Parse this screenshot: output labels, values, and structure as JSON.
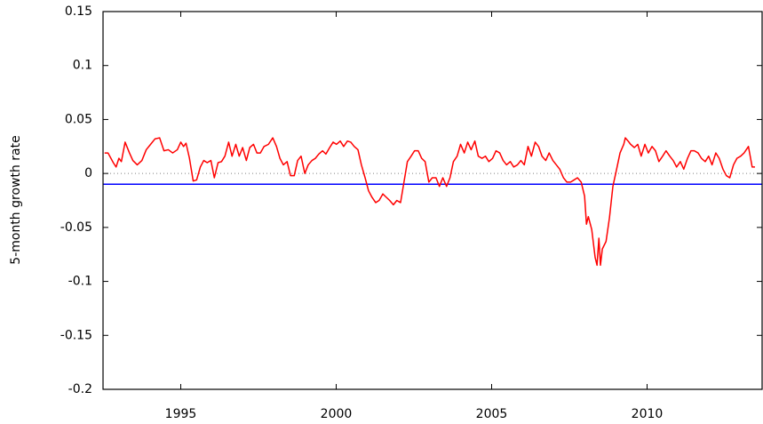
{
  "chart_data": {
    "type": "line",
    "y_label": "5-month growth rate",
    "xlim": [
      1992.5,
      2013.7
    ],
    "xticks": [
      1995,
      2000,
      2005,
      2010
    ],
    "ylim": [
      -0.2,
      0.15
    ],
    "yticks": [
      0.15,
      0.1,
      0.05,
      0,
      -0.05,
      -0.1,
      -0.15,
      -0.2
    ],
    "hlines": [
      {
        "value": 0,
        "color": "#808080",
        "dash": "dotted"
      },
      {
        "value": -0.01,
        "color": "#0000ff"
      }
    ],
    "x": [
      1992.55,
      1992.66,
      1992.83,
      1992.92,
      1993.01,
      1993.09,
      1993.21,
      1993.35,
      1993.46,
      1993.6,
      1993.75,
      1993.89,
      1994.03,
      1994.17,
      1994.32,
      1994.46,
      1994.6,
      1994.74,
      1994.89,
      1995.0,
      1995.09,
      1995.17,
      1995.28,
      1995.4,
      1995.51,
      1995.63,
      1995.74,
      1995.85,
      1995.97,
      1996.08,
      1996.2,
      1996.31,
      1996.42,
      1996.54,
      1996.65,
      1996.77,
      1996.88,
      1996.99,
      1997.11,
      1997.22,
      1997.34,
      1997.45,
      1997.56,
      1997.68,
      1997.82,
      1997.96,
      1998.08,
      1998.19,
      1998.3,
      1998.42,
      1998.53,
      1998.65,
      1998.76,
      1998.87,
      1998.99,
      1999.1,
      1999.22,
      1999.33,
      1999.44,
      1999.56,
      1999.67,
      1999.79,
      1999.9,
      2000.01,
      2000.13,
      2000.24,
      2000.36,
      2000.47,
      2000.58,
      2000.7,
      2000.81,
      2000.93,
      2001.04,
      2001.15,
      2001.27,
      2001.38,
      2001.5,
      2001.61,
      2001.72,
      2001.84,
      2001.95,
      2002.07,
      2002.18,
      2002.29,
      2002.41,
      2002.52,
      2002.64,
      2002.75,
      2002.86,
      2002.98,
      2003.09,
      2003.21,
      2003.32,
      2003.43,
      2003.55,
      2003.66,
      2003.77,
      2003.89,
      2004.0,
      2004.12,
      2004.23,
      2004.34,
      2004.46,
      2004.57,
      2004.69,
      2004.8,
      2004.91,
      2005.03,
      2005.14,
      2005.26,
      2005.37,
      2005.48,
      2005.6,
      2005.71,
      2005.83,
      2005.94,
      2006.05,
      2006.17,
      2006.28,
      2006.4,
      2006.51,
      2006.62,
      2006.74,
      2006.85,
      2006.97,
      2007.08,
      2007.19,
      2007.31,
      2007.42,
      2007.54,
      2007.65,
      2007.76,
      2007.88,
      2007.99,
      2008.05,
      2008.11,
      2008.22,
      2008.33,
      2008.39,
      2008.45,
      2008.5,
      2008.56,
      2008.68,
      2008.79,
      2008.9,
      2009.02,
      2009.13,
      2009.25,
      2009.3,
      2009.39,
      2009.47,
      2009.59,
      2009.7,
      2009.81,
      2009.93,
      2010.04,
      2010.16,
      2010.27,
      2010.38,
      2010.5,
      2010.61,
      2010.73,
      2010.84,
      2010.95,
      2011.07,
      2011.18,
      2011.3,
      2011.41,
      2011.52,
      2011.64,
      2011.75,
      2011.87,
      2011.98,
      2012.09,
      2012.21,
      2012.32,
      2012.44,
      2012.55,
      2012.66,
      2012.78,
      2012.89,
      2013.01,
      2013.12,
      2013.26,
      2013.38,
      2013.47
    ],
    "series": [
      {
        "color": "#ff0000",
        "values": [
          0.019,
          0.019,
          0.01,
          0.006,
          0.014,
          0.011,
          0.029,
          0.019,
          0.012,
          0.008,
          0.012,
          0.022,
          0.027,
          0.032,
          0.033,
          0.021,
          0.022,
          0.019,
          0.022,
          0.029,
          0.025,
          0.028,
          0.014,
          -0.007,
          -0.006,
          0.006,
          0.012,
          0.01,
          0.012,
          -0.004,
          0.01,
          0.011,
          0.016,
          0.029,
          0.016,
          0.027,
          0.016,
          0.024,
          0.012,
          0.024,
          0.027,
          0.019,
          0.019,
          0.025,
          0.027,
          0.033,
          0.025,
          0.014,
          0.008,
          0.011,
          -0.002,
          -0.002,
          0.012,
          0.016,
          0,
          0.008,
          0.012,
          0.014,
          0.018,
          0.021,
          0.018,
          0.024,
          0.029,
          0.027,
          0.03,
          0.025,
          0.03,
          0.029,
          0.025,
          0.022,
          0.008,
          -0.004,
          -0.016,
          -0.022,
          -0.027,
          -0.025,
          -0.019,
          -0.022,
          -0.025,
          -0.029,
          -0.025,
          -0.027,
          -0.008,
          0.011,
          0.016,
          0.021,
          0.021,
          0.014,
          0.011,
          -0.008,
          -0.004,
          -0.004,
          -0.012,
          -0.004,
          -0.012,
          -0.004,
          0.011,
          0.016,
          0.027,
          0.019,
          0.029,
          0.022,
          0.03,
          0.016,
          0.014,
          0.016,
          0.011,
          0.014,
          0.021,
          0.019,
          0.012,
          0.008,
          0.011,
          0.006,
          0.008,
          0.012,
          0.008,
          0.025,
          0.016,
          0.029,
          0.025,
          0.016,
          0.012,
          0.019,
          0.012,
          0.008,
          0.004,
          -0.004,
          -0.008,
          -0.008,
          -0.006,
          -0.004,
          -0.008,
          -0.021,
          -0.047,
          -0.04,
          -0.052,
          -0.078,
          -0.085,
          -0.06,
          -0.085,
          -0.07,
          -0.063,
          -0.041,
          -0.012,
          0.004,
          0.019,
          0.027,
          0.033,
          0.03,
          0.027,
          0.024,
          0.027,
          0.016,
          0.027,
          0.019,
          0.025,
          0.021,
          0.011,
          0.016,
          0.021,
          0.016,
          0.012,
          0.006,
          0.011,
          0.004,
          0.014,
          0.021,
          0.021,
          0.019,
          0.014,
          0.011,
          0.016,
          0.008,
          0.019,
          0.014,
          0.004,
          -0.002,
          -0.004,
          0.008,
          0.014,
          0.016,
          0.019,
          0.025,
          0.006,
          0.006
        ]
      }
    ]
  }
}
